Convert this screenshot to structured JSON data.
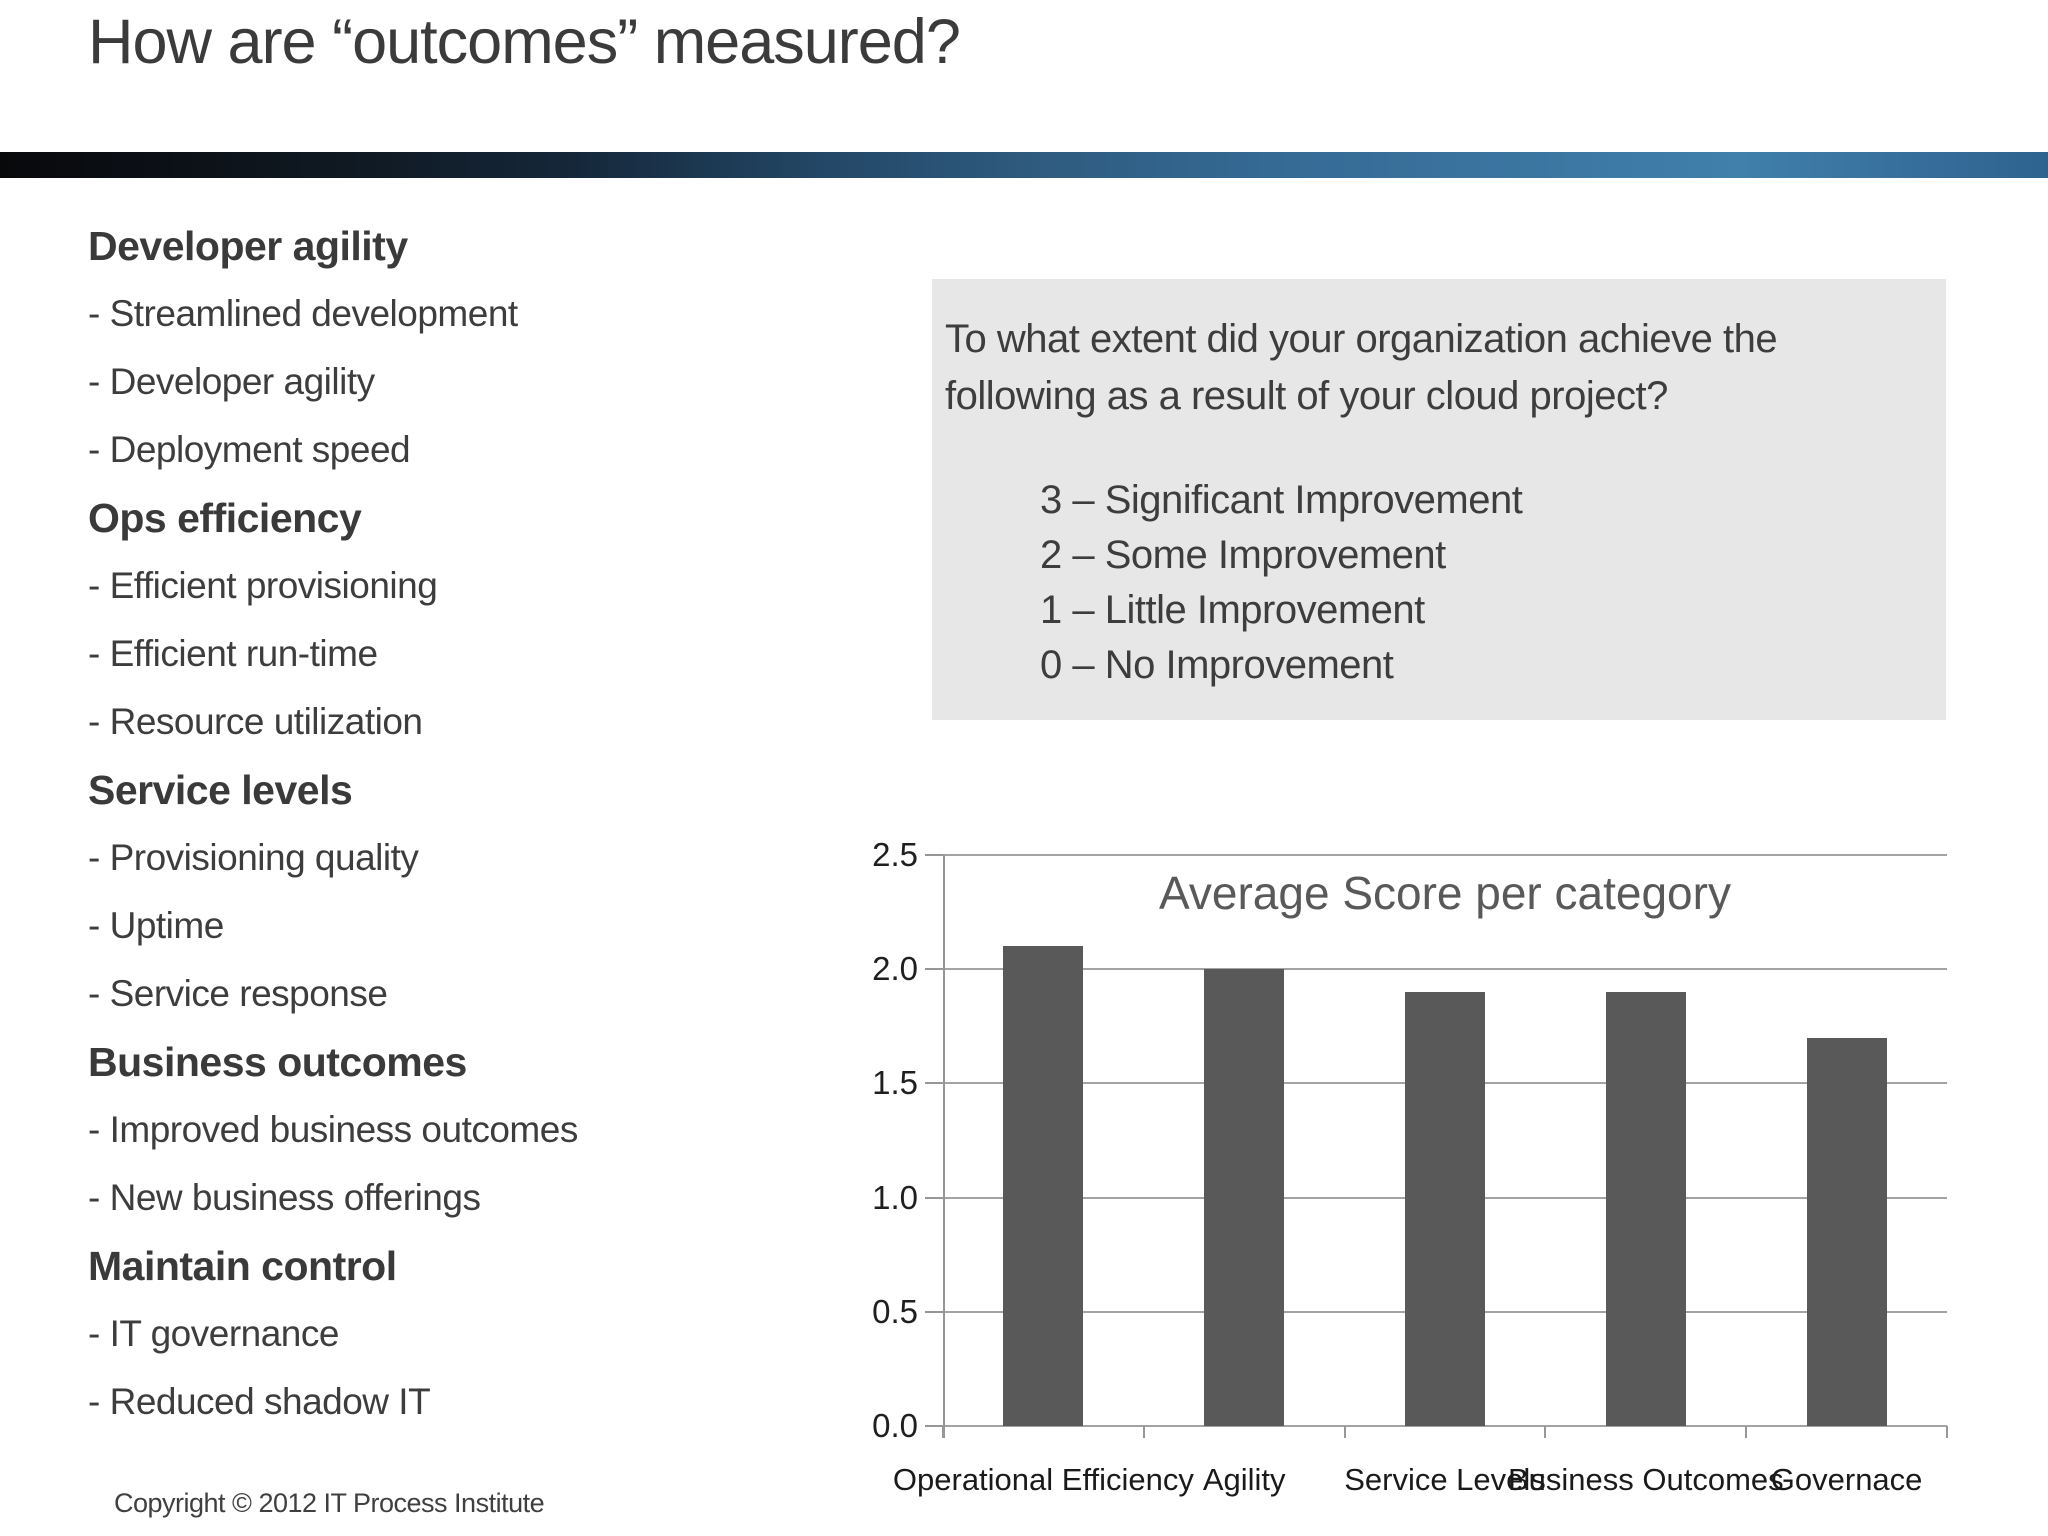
{
  "slide": {
    "title": "How are “outcomes” measured?",
    "copyright": "Copyright © 2012 IT Process Institute"
  },
  "measure_list": {
    "bullet_prefix": "- ",
    "groups": [
      {
        "heading": "Developer agility",
        "items": [
          "Streamlined development",
          "Developer agility",
          "Deployment speed"
        ]
      },
      {
        "heading": "Ops efficiency",
        "items": [
          "Efficient provisioning",
          "Efficient run-time",
          "Resource utilization"
        ]
      },
      {
        "heading": "Service levels",
        "items": [
          "Provisioning quality",
          "Uptime",
          "Service response"
        ]
      },
      {
        "heading": "Business outcomes",
        "items": [
          "Improved business outcomes",
          "New business offerings"
        ]
      },
      {
        "heading": "Maintain control",
        "items": [
          "IT governance",
          "Reduced shadow IT"
        ]
      }
    ]
  },
  "question_box": {
    "background": "#e7e7e7",
    "line1": "To what extent did your organization achieve the",
    "line2": "following as a result of your cloud project?",
    "scale": [
      "3 – Significant Improvement",
      "2 – Some Improvement",
      "1 – Little Improvement",
      "0 – No Improvement"
    ]
  },
  "chart_data": {
    "type": "bar",
    "title": "Average Score per category",
    "categories": [
      "Operational Efficiency",
      "Agility",
      "Service Levels",
      "Business Outcomes",
      "Governace"
    ],
    "values": [
      2.1,
      2.0,
      1.9,
      1.9,
      1.7
    ],
    "xlabel": "",
    "ylabel": "",
    "ylim": [
      0,
      2.5
    ],
    "ytick_step": 0.5,
    "ytick_labels": [
      "0.0",
      "0.5",
      "1.0",
      "1.5",
      "2.0",
      "2.5"
    ],
    "grid": true,
    "legend": "none",
    "bar_color": "#595959",
    "grid_color": "#a3a3a3"
  },
  "colors": {
    "slide_text": "#3d3d3d",
    "chart_title_text": "#595959",
    "axis_label_text": "#1f1f1f",
    "question_box_bg": "#e7e7e7",
    "divider_gradient_left": "#08090b",
    "divider_gradient_right": "#2d648f"
  }
}
